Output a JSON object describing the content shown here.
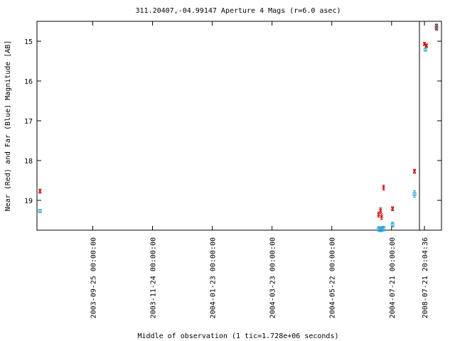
{
  "chart_data": {
    "type": "scatter",
    "title": "311.20407,-04.99147   Aperture 4 Mags (r=6.0 asec)",
    "y_label": "Near (Red) and Far (Blue) Magnitude [AB]",
    "x_label": "Middle of observation (1 tic=1.728e+06 seconds)",
    "x_segments": [
      {
        "xlim": [
          "2003-07-31T00:00:00Z",
          "2004-08-18T00:00:00Z"
        ]
      },
      {
        "xlim": [
          "2008-07-16T20:04:36Z",
          "2008-08-07T20:04:36Z"
        ]
      }
    ],
    "xticks": [
      {
        "value": "2003-09-25T00:00:00Z",
        "label": "2003-09-25 00:00:00"
      },
      {
        "value": "2003-11-24T00:00:00Z",
        "label": "2003-11-24 00:00:00"
      },
      {
        "value": "2004-01-23T00:00:00Z",
        "label": "2004-01-23 00:00:00"
      },
      {
        "value": "2004-03-23T00:00:00Z",
        "label": "2004-03-23 00:00:00"
      },
      {
        "value": "2004-05-22T00:00:00Z",
        "label": "2004-05-22 00:00:00"
      },
      {
        "value": "2004-07-21T00:00:00Z",
        "label": "2004-07-21 00:00:00"
      },
      {
        "value": "2008-07-21T20:04:36Z",
        "label": "2008-07-21 20:04:36"
      }
    ],
    "ylim": [
      14.5,
      19.75
    ],
    "y_reverse": true,
    "yticks": [
      15,
      16,
      17,
      18,
      19
    ],
    "series": [
      {
        "name": "Near",
        "color": "#d00000",
        "marker": "cross",
        "x": [
          "2003-08-03T00:00:00Z",
          "2004-07-08T00:00:00Z",
          "2004-07-10T00:00:00Z",
          "2004-07-11T00:00:00Z",
          "2004-07-13T00:00:00Z",
          "2004-07-22T00:00:00Z",
          "2004-08-13T00:00:00Z",
          "2008-07-21T20:04:36Z",
          "2008-07-23T20:04:36Z",
          "2008-08-02T20:04:36Z",
          "2008-08-02T20:04:36Z"
        ],
        "values": [
          18.77,
          19.36,
          19.25,
          19.41,
          18.68,
          19.21,
          18.27,
          15.07,
          15.11,
          14.61,
          14.68
        ],
        "errors": [
          0.05,
          0.06,
          0.06,
          0.07,
          0.06,
          0.05,
          0.05,
          0.04,
          0.04,
          0.04,
          0.04
        ]
      },
      {
        "name": "Far",
        "color": "#2a9fd6",
        "marker": "square",
        "x": [
          "2003-08-03T00:00:00Z",
          "2004-07-08T00:00:00Z",
          "2004-07-10T00:00:00Z",
          "2004-07-11T00:00:00Z",
          "2004-07-13T00:00:00Z",
          "2004-07-22T00:00:00Z",
          "2004-08-13T00:00:00Z",
          "2008-07-22T20:04:36Z",
          "2008-08-02T20:04:36Z"
        ],
        "values": [
          19.27,
          19.72,
          19.73,
          19.72,
          19.71,
          19.61,
          18.84,
          15.21,
          14.64
        ],
        "errors": [
          0.04,
          0.06,
          0.06,
          0.06,
          0.06,
          0.06,
          0.08,
          0.04,
          0.04
        ]
      }
    ]
  }
}
